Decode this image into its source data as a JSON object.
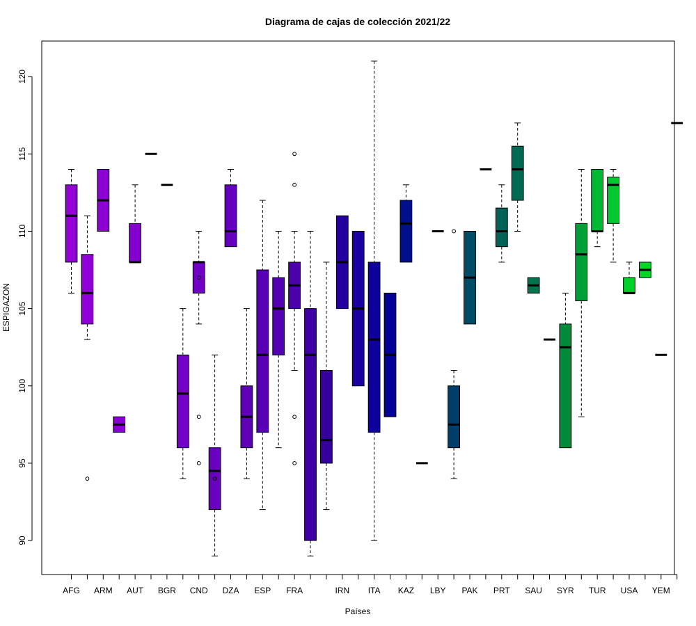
{
  "chart_data": {
    "type": "boxplot",
    "title": "Diagrama de cajas de colección 2021/22",
    "xlabel": "Países",
    "ylabel": "ESPIGAZON",
    "ylim": [
      87.8,
      122.3
    ],
    "yticks": [
      90,
      95,
      100,
      105,
      110,
      115,
      120
    ],
    "grid": false,
    "categories": [
      "AFG",
      "",
      "ARM",
      "",
      "AUT",
      "",
      "BGR",
      "",
      "CND",
      "",
      "DZA",
      "",
      "ESP",
      "",
      "FRA",
      "",
      "",
      "IRN",
      "",
      "ITA",
      "",
      "KAZ",
      "",
      "LBY",
      "",
      "PAK",
      "",
      "PRT",
      "",
      "SAU",
      "",
      "SYR",
      "",
      "TUR",
      "",
      "USA",
      "",
      "YEM",
      ""
    ],
    "boxes": [
      {
        "wl": 106,
        "q1": 108,
        "med": 111,
        "q3": 113,
        "wh": 114,
        "out": [],
        "color": "#9400D8"
      },
      {
        "wl": 103,
        "q1": 104,
        "med": 106,
        "q3": 108.5,
        "wh": 111,
        "out": [
          94
        ],
        "color": "#9000D6"
      },
      {
        "wl": 110,
        "q1": 110,
        "med": 112,
        "q3": 114,
        "wh": 114,
        "out": [],
        "color": "#8C00D4"
      },
      {
        "wl": 97,
        "q1": 97,
        "med": 97.5,
        "q3": 98,
        "wh": 98,
        "out": [],
        "color": "#8800D2"
      },
      {
        "wl": 108,
        "q1": 108,
        "med": 108,
        "q3": 110.5,
        "wh": 113,
        "out": [],
        "color": "#8400D0"
      },
      {
        "wl": 115,
        "q1": 115,
        "med": 115,
        "q3": 115,
        "wh": 115,
        "out": [],
        "color": "#8000CE"
      },
      {
        "wl": 113,
        "q1": 113,
        "med": 113,
        "q3": 113,
        "wh": 113,
        "out": [],
        "color": "#7C00CC"
      },
      {
        "wl": 94,
        "q1": 96,
        "med": 99.5,
        "q3": 102,
        "wh": 105,
        "out": [],
        "color": "#7600C8"
      },
      {
        "wl": 104,
        "q1": 106,
        "med": 108,
        "q3": 108,
        "wh": 110,
        "out": [
          107,
          98,
          95
        ],
        "color": "#7000C4"
      },
      {
        "wl": 89,
        "q1": 92,
        "med": 94.5,
        "q3": 96,
        "wh": 102,
        "out": [
          94
        ],
        "color": "#6A00C0"
      },
      {
        "wl": 109,
        "q1": 109,
        "med": 110,
        "q3": 113,
        "wh": 114,
        "out": [],
        "color": "#6400BC"
      },
      {
        "wl": 94,
        "q1": 96,
        "med": 98,
        "q3": 100,
        "wh": 105,
        "out": [],
        "color": "#5E00B8"
      },
      {
        "wl": 92,
        "q1": 97,
        "med": 102,
        "q3": 107.5,
        "wh": 112,
        "out": [],
        "color": "#5800B4"
      },
      {
        "wl": 96,
        "q1": 102,
        "med": 105,
        "q3": 107,
        "wh": 110,
        "out": [],
        "color": "#5200B0"
      },
      {
        "wl": 101,
        "q1": 105,
        "med": 106.5,
        "q3": 108,
        "wh": 110,
        "out": [
          115,
          113,
          98,
          95
        ],
        "color": "#4C00AC"
      },
      {
        "wl": 89,
        "q1": 90,
        "med": 102,
        "q3": 105,
        "wh": 110,
        "out": [],
        "color": "#3F00A6"
      },
      {
        "wl": 92,
        "q1": 95,
        "med": 96.5,
        "q3": 101,
        "wh": 108,
        "out": [],
        "color": "#3600A0"
      },
      {
        "wl": 105,
        "q1": 105,
        "med": 108,
        "q3": 111,
        "wh": 111,
        "out": [],
        "color": "#2400A0"
      },
      {
        "wl": 100,
        "q1": 100,
        "med": 105,
        "q3": 110,
        "wh": 110,
        "out": [],
        "color": "#1A00A0"
      },
      {
        "wl": 90,
        "q1": 97,
        "med": 103,
        "q3": 108,
        "wh": 121,
        "out": [],
        "color": "#0F009C"
      },
      {
        "wl": 98,
        "q1": 98,
        "med": 102,
        "q3": 106,
        "wh": 106,
        "out": [],
        "color": "#050096"
      },
      {
        "wl": 108,
        "q1": 108,
        "med": 110.5,
        "q3": 112,
        "wh": 113,
        "out": [],
        "color": "#00108C"
      },
      {
        "wl": 95,
        "q1": 95,
        "med": 95,
        "q3": 95,
        "wh": 95,
        "out": [],
        "color": "#001A84"
      },
      {
        "wl": 110,
        "q1": 110,
        "med": 110,
        "q3": 110,
        "wh": 110,
        "out": [],
        "color": "#00267C"
      },
      {
        "wl": 94,
        "q1": 96,
        "med": 97.5,
        "q3": 100,
        "wh": 101,
        "out": [
          110
        ],
        "color": "#003E6A"
      },
      {
        "wl": 104,
        "q1": 104,
        "med": 107,
        "q3": 110,
        "wh": 110,
        "out": [],
        "color": "#004C64"
      },
      {
        "wl": 114,
        "q1": 114,
        "med": 114,
        "q3": 114,
        "wh": 114,
        "out": [],
        "color": "#00565E"
      },
      {
        "wl": 108,
        "q1": 109,
        "med": 110,
        "q3": 111.5,
        "wh": 113,
        "out": [],
        "color": "#00605A"
      },
      {
        "wl": 110,
        "q1": 112,
        "med": 114,
        "q3": 115.5,
        "wh": 117,
        "out": [],
        "color": "#006A52"
      },
      {
        "wl": 106,
        "q1": 106,
        "med": 106.5,
        "q3": 107,
        "wh": 107,
        "out": [],
        "color": "#00744A"
      },
      {
        "wl": 103,
        "q1": 103,
        "med": 103,
        "q3": 103,
        "wh": 103,
        "out": [],
        "color": "#007E40"
      },
      {
        "wl": 96,
        "q1": 96,
        "med": 102.5,
        "q3": 104,
        "wh": 106,
        "out": [],
        "color": "#008A3A"
      },
      {
        "wl": 98,
        "q1": 105.5,
        "med": 108.5,
        "q3": 110.5,
        "wh": 114,
        "out": [],
        "color": "#00A038"
      },
      {
        "wl": 109,
        "q1": 110,
        "med": 110,
        "q3": 114,
        "wh": 114,
        "out": [],
        "color": "#00B832"
      },
      {
        "wl": 108,
        "q1": 110.5,
        "med": 113,
        "q3": 113.5,
        "wh": 114,
        "out": [],
        "color": "#00C82E"
      },
      {
        "wl": 106,
        "q1": 106,
        "med": 106,
        "q3": 107,
        "wh": 108,
        "out": [],
        "color": "#00D02A"
      },
      {
        "wl": 107,
        "q1": 107,
        "med": 107.5,
        "q3": 108,
        "wh": 108,
        "out": [],
        "color": "#00D828"
      },
      {
        "wl": 102,
        "q1": 102,
        "med": 102,
        "q3": 102,
        "wh": 102,
        "out": [],
        "color": "#00E024"
      },
      {
        "wl": 117,
        "q1": 117,
        "med": 117,
        "q3": 117,
        "wh": 117,
        "out": [],
        "color": "#00E820"
      }
    ]
  }
}
